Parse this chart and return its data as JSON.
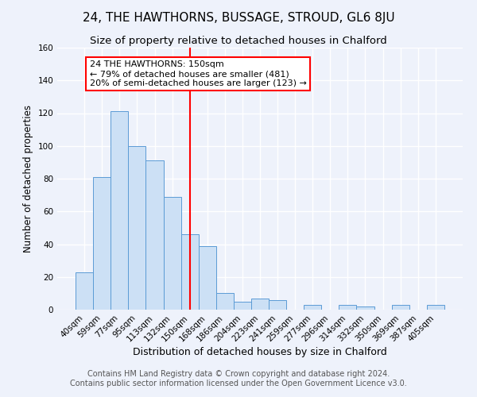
{
  "title": "24, THE HAWTHORNS, BUSSAGE, STROUD, GL6 8JU",
  "subtitle": "Size of property relative to detached houses in Chalford",
  "xlabel": "Distribution of detached houses by size in Chalford",
  "ylabel": "Number of detached properties",
  "footnote1": "Contains HM Land Registry data © Crown copyright and database right 2024.",
  "footnote2": "Contains public sector information licensed under the Open Government Licence v3.0.",
  "bar_labels": [
    "40sqm",
    "59sqm",
    "77sqm",
    "95sqm",
    "113sqm",
    "132sqm",
    "150sqm",
    "168sqm",
    "186sqm",
    "204sqm",
    "223sqm",
    "241sqm",
    "259sqm",
    "277sqm",
    "296sqm",
    "314sqm",
    "332sqm",
    "350sqm",
    "369sqm",
    "387sqm",
    "405sqm"
  ],
  "bar_values": [
    23,
    81,
    121,
    100,
    91,
    69,
    46,
    39,
    10,
    5,
    7,
    6,
    0,
    3,
    0,
    3,
    2,
    0,
    3,
    0,
    3
  ],
  "bar_color": "#cce0f5",
  "bar_edge_color": "#5b9bd5",
  "vline_color": "red",
  "vline_index": 6,
  "annotation_line1": "24 THE HAWTHORNS: 150sqm",
  "annotation_line2": "← 79% of detached houses are smaller (481)",
  "annotation_line3": "20% of semi-detached houses are larger (123) →",
  "annotation_box_color": "white",
  "annotation_box_edge": "red",
  "ylim": [
    0,
    160
  ],
  "yticks": [
    0,
    20,
    40,
    60,
    80,
    100,
    120,
    140,
    160
  ],
  "background_color": "#eef2fb",
  "grid_color": "white",
  "title_fontsize": 11,
  "subtitle_fontsize": 9.5,
  "xlabel_fontsize": 9,
  "ylabel_fontsize": 8.5,
  "tick_fontsize": 7.5,
  "annot_fontsize": 8,
  "footnote_fontsize": 7
}
